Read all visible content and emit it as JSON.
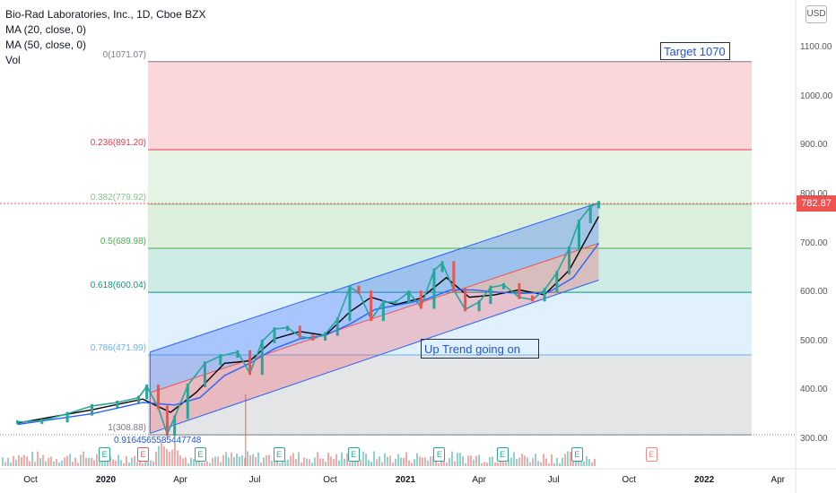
{
  "header": {
    "title": "Bio-Rad Laboratories, Inc., 1D, Cboe BZX",
    "indicators": [
      "MA (20, close, 0)",
      "MA (50, close, 0)",
      "Vol"
    ]
  },
  "currency_badge": "USD",
  "current_price": "782.87",
  "annotations": {
    "target": "Target 1070",
    "trend": "Up Trend going on",
    "stray_value": "0.9164565585447748"
  },
  "colors": {
    "up": "#26a69a",
    "down": "#ef5350",
    "ma20": "#000000",
    "ma50": "#2962ff",
    "channel_upper": "#2962ff",
    "channel_lower": "#2962ff"
  },
  "chart_data": {
    "type": "line",
    "title": "Bio-Rad Laboratories, Inc., 1D, Cboe BZX",
    "ylim": [
      290,
      1130
    ],
    "y_ticks": [
      "1100.00",
      "1000.00",
      "900.00",
      "800.00",
      "700.00",
      "600.00",
      "500.00",
      "400.00",
      "300.00"
    ],
    "x_ticks": [
      "Oct",
      "2020",
      "Apr",
      "Jul",
      "Oct",
      "2021",
      "Apr",
      "Jul",
      "Oct",
      "2022",
      "Apr"
    ],
    "fib_levels": [
      {
        "ratio": "0",
        "price": 1071.07,
        "label": "0(1071.07)",
        "color": "#787b86"
      },
      {
        "ratio": "0.236",
        "price": 891.2,
        "label": "0.236(891.20)",
        "color": "#f23645"
      },
      {
        "ratio": "0.382",
        "price": 779.92,
        "label": "0.382(779.92)",
        "color": "#81c784"
      },
      {
        "ratio": "0.5",
        "price": 689.98,
        "label": "0.5(689.98)",
        "color": "#4caf50"
      },
      {
        "ratio": "0.618",
        "price": 600.04,
        "label": "0.618(600.04)",
        "color": "#089981"
      },
      {
        "ratio": "0.786",
        "price": 471.99,
        "label": "0.786(471.99)",
        "color": "#64b5f6"
      },
      {
        "ratio": "1",
        "price": 308.88,
        "label": "1(308.88)",
        "color": "#787b86"
      }
    ],
    "price_series": [
      {
        "x": "2019-09-15",
        "y": 335
      },
      {
        "x": "2019-10-15",
        "y": 338
      },
      {
        "x": "2019-11-15",
        "y": 352
      },
      {
        "x": "2019-12-15",
        "y": 368
      },
      {
        "x": "2020-01-15",
        "y": 375
      },
      {
        "x": "2020-02-10",
        "y": 385
      },
      {
        "x": "2020-02-20",
        "y": 408
      },
      {
        "x": "2020-03-05",
        "y": 365
      },
      {
        "x": "2020-03-16",
        "y": 310
      },
      {
        "x": "2020-03-25",
        "y": 345
      },
      {
        "x": "2020-04-10",
        "y": 410
      },
      {
        "x": "2020-05-01",
        "y": 455
      },
      {
        "x": "2020-05-20",
        "y": 470
      },
      {
        "x": "2020-06-10",
        "y": 478
      },
      {
        "x": "2020-06-25",
        "y": 435
      },
      {
        "x": "2020-07-10",
        "y": 500
      },
      {
        "x": "2020-07-25",
        "y": 525
      },
      {
        "x": "2020-08-10",
        "y": 528
      },
      {
        "x": "2020-08-25",
        "y": 510
      },
      {
        "x": "2020-09-10",
        "y": 505
      },
      {
        "x": "2020-09-25",
        "y": 515
      },
      {
        "x": "2020-10-10",
        "y": 545
      },
      {
        "x": "2020-10-25",
        "y": 610
      },
      {
        "x": "2020-11-05",
        "y": 600
      },
      {
        "x": "2020-11-20",
        "y": 545
      },
      {
        "x": "2020-12-05",
        "y": 580
      },
      {
        "x": "2020-12-20",
        "y": 580
      },
      {
        "x": "2021-01-05",
        "y": 600
      },
      {
        "x": "2021-01-20",
        "y": 570
      },
      {
        "x": "2021-02-05",
        "y": 645
      },
      {
        "x": "2021-02-15",
        "y": 660
      },
      {
        "x": "2021-03-01",
        "y": 605
      },
      {
        "x": "2021-03-15",
        "y": 565
      },
      {
        "x": "2021-04-01",
        "y": 580
      },
      {
        "x": "2021-04-15",
        "y": 610
      },
      {
        "x": "2021-05-01",
        "y": 615
      },
      {
        "x": "2021-05-20",
        "y": 590
      },
      {
        "x": "2021-06-05",
        "y": 585
      },
      {
        "x": "2021-06-20",
        "y": 605
      },
      {
        "x": "2021-07-05",
        "y": 640
      },
      {
        "x": "2021-07-20",
        "y": 690
      },
      {
        "x": "2021-08-01",
        "y": 745
      },
      {
        "x": "2021-08-15",
        "y": 775
      },
      {
        "x": "2021-08-25",
        "y": 782.87
      }
    ],
    "series": [
      {
        "name": "MA (20, close, 0)",
        "values": [
          {
            "x": "2019-09-15",
            "y": 333
          },
          {
            "x": "2019-12-15",
            "y": 360
          },
          {
            "x": "2020-02-15",
            "y": 382
          },
          {
            "x": "2020-03-20",
            "y": 355
          },
          {
            "x": "2020-04-20",
            "y": 395
          },
          {
            "x": "2020-05-25",
            "y": 455
          },
          {
            "x": "2020-06-25",
            "y": 460
          },
          {
            "x": "2020-07-25",
            "y": 505
          },
          {
            "x": "2020-08-25",
            "y": 520
          },
          {
            "x": "2020-09-25",
            "y": 512
          },
          {
            "x": "2020-10-25",
            "y": 560
          },
          {
            "x": "2020-11-20",
            "y": 590
          },
          {
            "x": "2020-12-20",
            "y": 575
          },
          {
            "x": "2021-01-20",
            "y": 588
          },
          {
            "x": "2021-02-20",
            "y": 630
          },
          {
            "x": "2021-03-20",
            "y": 590
          },
          {
            "x": "2021-04-20",
            "y": 595
          },
          {
            "x": "2021-05-20",
            "y": 605
          },
          {
            "x": "2021-06-20",
            "y": 595
          },
          {
            "x": "2021-07-20",
            "y": 645
          },
          {
            "x": "2021-08-25",
            "y": 755
          }
        ]
      },
      {
        "name": "MA (50, close, 0)",
        "values": [
          {
            "x": "2019-09-15",
            "y": 330
          },
          {
            "x": "2019-12-15",
            "y": 352
          },
          {
            "x": "2020-02-15",
            "y": 375
          },
          {
            "x": "2020-03-25",
            "y": 370
          },
          {
            "x": "2020-04-25",
            "y": 385
          },
          {
            "x": "2020-05-25",
            "y": 430
          },
          {
            "x": "2020-06-25",
            "y": 455
          },
          {
            "x": "2020-07-25",
            "y": 485
          },
          {
            "x": "2020-08-25",
            "y": 505
          },
          {
            "x": "2020-09-25",
            "y": 512
          },
          {
            "x": "2020-10-25",
            "y": 535
          },
          {
            "x": "2020-11-25",
            "y": 565
          },
          {
            "x": "2020-12-25",
            "y": 575
          },
          {
            "x": "2021-01-25",
            "y": 585
          },
          {
            "x": "2021-02-25",
            "y": 605
          },
          {
            "x": "2021-03-25",
            "y": 605
          },
          {
            "x": "2021-04-25",
            "y": 600
          },
          {
            "x": "2021-05-25",
            "y": 598
          },
          {
            "x": "2021-06-25",
            "y": 600
          },
          {
            "x": "2021-07-25",
            "y": 630
          },
          {
            "x": "2021-08-25",
            "y": 700
          }
        ]
      }
    ],
    "channel": {
      "upper": [
        {
          "x": "2020-02-24",
          "y": 478
        },
        {
          "x": "2021-08-25",
          "y": 783
        }
      ],
      "middle": [
        {
          "x": "2020-02-24",
          "y": 395
        },
        {
          "x": "2021-08-25",
          "y": 700
        }
      ],
      "lower": [
        {
          "x": "2020-02-24",
          "y": 312
        },
        {
          "x": "2021-08-25",
          "y": 625
        }
      ]
    },
    "events": [
      {
        "x": "2019-12-30",
        "kind": "E",
        "style": "green"
      },
      {
        "x": "2020-02-15",
        "kind": "E",
        "style": "red"
      },
      {
        "x": "2020-04-25",
        "kind": "E",
        "style": "green"
      },
      {
        "x": "2020-07-30",
        "kind": "E",
        "style": "green"
      },
      {
        "x": "2020-10-29",
        "kind": "E",
        "style": "green"
      },
      {
        "x": "2021-02-11",
        "kind": "E",
        "style": "green"
      },
      {
        "x": "2021-04-29",
        "kind": "E",
        "style": "green"
      },
      {
        "x": "2021-07-29",
        "kind": "E",
        "style": "green"
      },
      {
        "x": "2021-10-28",
        "kind": "E",
        "style": "gray"
      }
    ],
    "grid": false,
    "legend": "top-left"
  }
}
